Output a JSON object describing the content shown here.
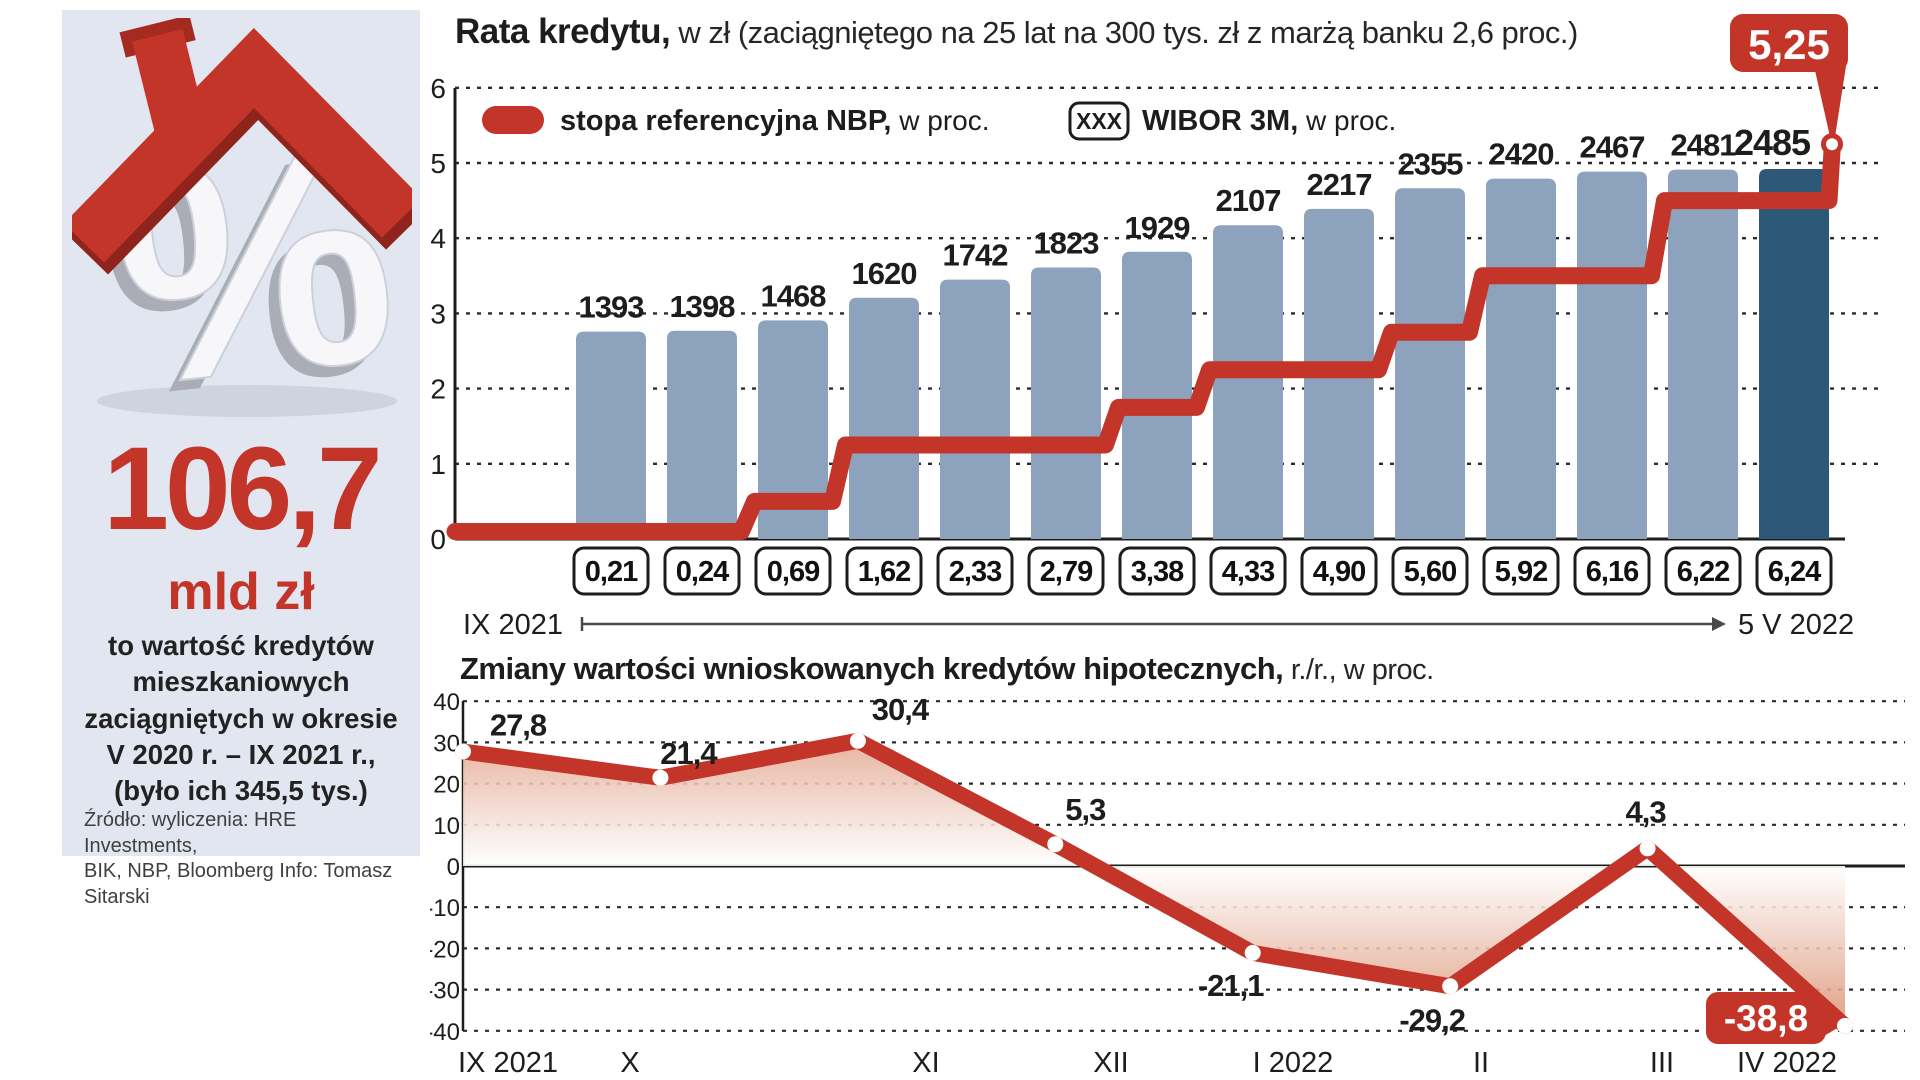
{
  "colors": {
    "red": "#c33529",
    "bar_blue": "#8da2bc",
    "bar_dark": "#2e5878",
    "panel_bg": "#e2e6f0",
    "ink": "#1d1d1b",
    "peach": "#db9072"
  },
  "sidebar": {
    "icon": "house-roof-percent-3d",
    "big_number": "106,7",
    "unit": "mld zł",
    "description": "to wartość kredytów\nmieszkaniowych\nzaciągniętych w okresie\nV 2020 r. – IX 2021 r.,\n(było ich 345,5 tys.)",
    "source": "Źródło: wyliczenia: HRE Investments,\nBIK, NBP, Bloomberg  Info: Tomasz Sitarski"
  },
  "top_chart": {
    "title_bold": "Rata kredytu,",
    "title_rest": " w zł (zaciągniętego na 25 lat na 300 tys. zł z marżą banku 2,6 proc.)",
    "badge": "5,25",
    "legend": {
      "nbp_bold": "stopa referencyjna NBP,",
      "nbp_rest": " w proc.",
      "wibor_tag": "XXX",
      "wibor_bold": "WIBOR 3M,",
      "wibor_rest": " w proc."
    },
    "axis_start": "IX 2021",
    "axis_end": "5 V 2022"
  },
  "bottom_chart": {
    "title_bold": "Zmiany wartości wnioskowanych kredytów hipotecznych,",
    "title_rest": " r./r., w proc.",
    "badge": "-38,8"
  },
  "chart_data": [
    {
      "type": "bar",
      "title": "Rata kredytu, w zł (zaciągniętego na 25 lat na 300 tys. zł z marżą banku 2,6 proc.)",
      "x_range": [
        "IX 2021",
        "5 V 2022"
      ],
      "ylim": [
        0,
        6
      ],
      "y_ticks": [
        0,
        1,
        2,
        3,
        4,
        5,
        6
      ],
      "grid": "dashed-horizontal",
      "series": [
        {
          "name": "Rata kredytu, w zł",
          "type": "bar",
          "values": [
            1393,
            1398,
            1468,
            1620,
            1742,
            1823,
            1929,
            2107,
            2217,
            2355,
            2420,
            2467,
            2481,
            2485
          ],
          "highlight_last": true
        },
        {
          "name": "WIBOR 3M, w proc.",
          "type": "boxed-labels",
          "values": [
            0.21,
            0.24,
            0.69,
            1.62,
            2.33,
            2.79,
            3.38,
            4.33,
            4.9,
            5.6,
            5.92,
            6.16,
            6.22,
            6.24
          ],
          "labels": [
            "0,21",
            "0,24",
            "0,69",
            "1,62",
            "2,33",
            "2,79",
            "3,38",
            "4,33",
            "4,90",
            "5,60",
            "5,92",
            "6,16",
            "6,22",
            "6,24"
          ]
        },
        {
          "name": "stopa referencyjna NBP, w proc.",
          "type": "step-line",
          "values_per_bar": [
            0.1,
            0.1,
            0.5,
            1.25,
            1.25,
            1.25,
            1.75,
            2.25,
            2.25,
            2.75,
            3.5,
            3.5,
            4.5,
            4.5
          ],
          "final_value": 5.25,
          "final_label": "5,25"
        }
      ]
    },
    {
      "type": "line",
      "title": "Zmiany wartości wnioskowanych kredytów hipotecznych, r./r., w proc.",
      "categories": [
        "IX 2021",
        "X",
        "XI",
        "XII",
        "I 2022",
        "II",
        "III",
        "IV 2022"
      ],
      "values": [
        27.8,
        21.4,
        30.4,
        5.3,
        -21.1,
        -29.2,
        4.3,
        -38.8
      ],
      "labels": [
        "27,8",
        "21,4",
        "30,4",
        "5,3",
        "-21,1",
        "-29,2",
        "4,3",
        "-38,8"
      ],
      "badge_label": "-38,8",
      "ylim": [
        -40,
        40
      ],
      "y_step": 10,
      "area_fill": "peach-gradient-from-zero",
      "legend_position": "none"
    }
  ]
}
